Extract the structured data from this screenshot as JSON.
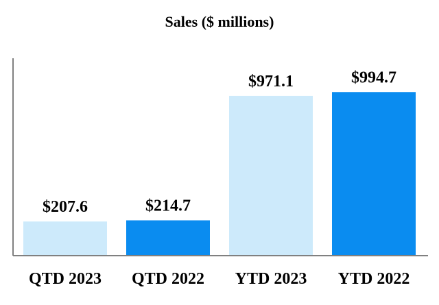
{
  "chart_data": {
    "type": "bar",
    "title": "Sales ($ millions)",
    "xlabel": "",
    "ylabel": "",
    "categories": [
      "QTD 2023",
      "QTD 2022",
      "YTD 2023",
      "YTD 2022"
    ],
    "values": [
      207.6,
      214.7,
      971.1,
      994.7
    ],
    "value_labels": [
      "$207.6",
      "$214.7",
      "$971.1",
      "$994.7"
    ],
    "ylim": [
      0,
      1200
    ],
    "grid": false,
    "legend": "none",
    "bar_colors": [
      "#cdeafb",
      "#0a8cf0",
      "#cdeafb",
      "#0a8cf0"
    ],
    "axis_color": "#808080"
  }
}
